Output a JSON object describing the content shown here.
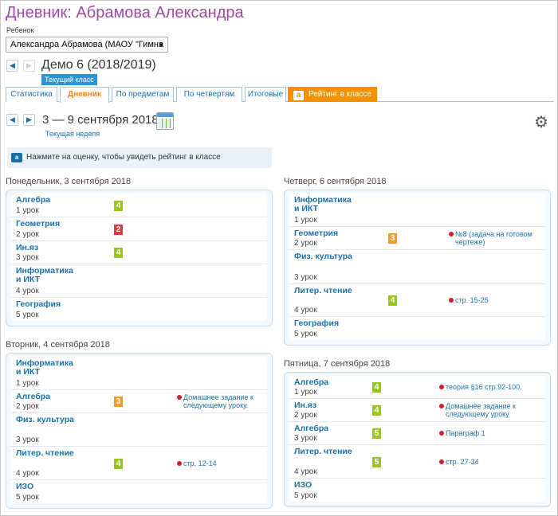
{
  "page_title": "Дневник: Абрамова Александра",
  "child_label": "Ребенок",
  "child_select_value": "Александра Абрамова (МАОУ \"Гимна",
  "year_title": "Демо 6 (2018/2019)",
  "current_class_badge": "Текущий класс",
  "tabs": [
    "Статистика",
    "Дневник",
    "По предметам",
    "По четвертям",
    "Итоговые",
    "Рейтинг в классе"
  ],
  "week_title": "3 — 9 сентября 2018",
  "current_week_link": "Текущая неделя",
  "hint_text": "Нажмите на оценку, чтобы увидеть рейтинг в классе",
  "colors": {
    "grade_green": "#9ac31c",
    "grade_red": "#e0383e",
    "grade_orange": "#f39b21",
    "accent_blue": "#1b6fa8",
    "title_purple": "#9a4c9e"
  },
  "days": [
    {
      "title": "Понедельник, 3 сентября 2018",
      "lessons": [
        {
          "name": "Алгебра",
          "num": "1 урок",
          "grade": "4",
          "color": "#9ac31c",
          "hw": ""
        },
        {
          "name": "Геометрия",
          "num": "2 урок",
          "grade": "2",
          "color": "#e0383e",
          "hw": ""
        },
        {
          "name": "Ин.яз",
          "num": "3 урок",
          "grade": "4",
          "color": "#9ac31c",
          "hw": ""
        },
        {
          "name": "Информатика и ИКТ",
          "num": "4 урок",
          "grade": "",
          "color": "",
          "hw": ""
        },
        {
          "name": "География",
          "num": "5 урок",
          "grade": "",
          "color": "",
          "hw": ""
        }
      ]
    },
    {
      "title": "Вторник, 4 сентября 2018",
      "lessons": [
        {
          "name": "Информатика и ИКТ",
          "num": "1 урок",
          "grade": "",
          "color": "",
          "hw": ""
        },
        {
          "name": "Алгебра",
          "num": "2 урок",
          "grade": "3",
          "color": "#f39b21",
          "hw": "Домашнее задание к следующему уроку."
        },
        {
          "name": "Физ. культура",
          "num": "3 урок",
          "grade": "",
          "color": "",
          "hw": ""
        },
        {
          "name": "Литер. чтение",
          "num": "4 урок",
          "grade": "4",
          "color": "#9ac31c",
          "hw": "стр. 12-14"
        },
        {
          "name": "ИЗО",
          "num": "5 урок",
          "grade": "",
          "color": "",
          "hw": ""
        }
      ]
    },
    {
      "title": "Четверг, 6 сентября 2018",
      "lessons": [
        {
          "name": "Информатика и ИКТ",
          "num": "1 урок",
          "grade": "",
          "color": "",
          "hw": ""
        },
        {
          "name": "Геометрия",
          "num": "2 урок",
          "grade": "3",
          "color": "#f39b21",
          "hw": "№8 (задача на готовом чертеже)"
        },
        {
          "name": "Физ. культура",
          "num": "3 урок",
          "grade": "",
          "color": "",
          "hw": ""
        },
        {
          "name": "Литер. чтение",
          "num": "4 урок",
          "grade": "4",
          "color": "#9ac31c",
          "hw": "стр. 15-25"
        },
        {
          "name": "География",
          "num": "5 урок",
          "grade": "",
          "color": "",
          "hw": ""
        }
      ]
    },
    {
      "title": "Пятница, 7 сентября 2018",
      "lessons": [
        {
          "name": "Алгебра",
          "num": "1 урок",
          "grade": "4",
          "color": "#9ac31c",
          "hw": "теория §16 стр.92-100."
        },
        {
          "name": "Ин.яз",
          "num": "2 урок",
          "grade": "4",
          "color": "#9ac31c",
          "hw": "Домашнее задание к следующему уроку"
        },
        {
          "name": "Алгебра",
          "num": "3 урок",
          "grade": "5",
          "color": "#9ac31c",
          "hw": "Параграф 1"
        },
        {
          "name": "Литер. чтение",
          "num": "4 урок",
          "grade": "5",
          "color": "#9ac31c",
          "hw": "стр. 27-34"
        },
        {
          "name": "ИЗО",
          "num": "5 урок",
          "grade": "",
          "color": "",
          "hw": ""
        }
      ]
    }
  ]
}
